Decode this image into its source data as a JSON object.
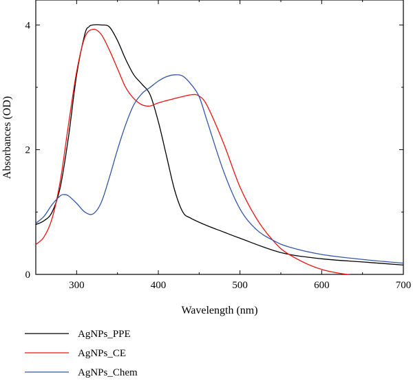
{
  "chart_data": {
    "type": "line",
    "title": "",
    "xlabel": "Wavelength (nm)",
    "ylabel": "Absorbances (OD)",
    "xlim": [
      250,
      700
    ],
    "ylim": [
      0,
      4.4
    ],
    "xticks": [
      300,
      400,
      500,
      600,
      700
    ],
    "yticks": [
      0,
      2,
      4
    ],
    "grid": false,
    "legend_position": "bottom-left",
    "series": [
      {
        "name": "AgNPs_PPE",
        "color": "#000000",
        "x": [
          250,
          260,
          270,
          280,
          290,
          300,
          310,
          315,
          320,
          330,
          340,
          350,
          360,
          370,
          380,
          390,
          400,
          410,
          420,
          430,
          440,
          460,
          480,
          500,
          550,
          600,
          650,
          700
        ],
        "y": [
          0.8,
          0.86,
          1.0,
          1.4,
          2.2,
          3.2,
          3.85,
          3.97,
          4.0,
          4.0,
          3.97,
          3.75,
          3.45,
          3.2,
          3.05,
          2.88,
          2.45,
          1.9,
          1.35,
          1.0,
          0.9,
          0.78,
          0.68,
          0.58,
          0.35,
          0.25,
          0.2,
          0.15
        ]
      },
      {
        "name": "AgNPs_CE",
        "color": "#ee1111",
        "x": [
          250,
          260,
          270,
          280,
          290,
          300,
          310,
          320,
          330,
          340,
          350,
          360,
          370,
          380,
          390,
          400,
          420,
          440,
          450,
          460,
          480,
          500,
          520,
          540,
          560,
          600,
          650,
          700
        ],
        "y": [
          0.48,
          0.6,
          0.9,
          1.5,
          2.4,
          3.25,
          3.8,
          3.93,
          3.85,
          3.6,
          3.3,
          3.0,
          2.82,
          2.72,
          2.7,
          2.75,
          2.82,
          2.88,
          2.86,
          2.7,
          2.1,
          1.4,
          0.9,
          0.55,
          0.32,
          0.08,
          -0.03,
          -0.08
        ]
      },
      {
        "name": "AgNPs_Chem",
        "color": "#3355aa",
        "x": [
          250,
          260,
          270,
          280,
          285,
          290,
          300,
          310,
          320,
          330,
          340,
          350,
          360,
          370,
          380,
          390,
          400,
          410,
          420,
          430,
          440,
          450,
          460,
          480,
          500,
          520,
          540,
          560,
          600,
          650,
          700
        ],
        "y": [
          0.82,
          0.93,
          1.12,
          1.26,
          1.28,
          1.26,
          1.14,
          1.0,
          0.97,
          1.15,
          1.55,
          2.0,
          2.4,
          2.72,
          2.9,
          3.0,
          3.1,
          3.17,
          3.2,
          3.18,
          3.05,
          2.85,
          2.45,
          1.65,
          1.05,
          0.72,
          0.55,
          0.44,
          0.32,
          0.24,
          0.18
        ]
      }
    ]
  }
}
